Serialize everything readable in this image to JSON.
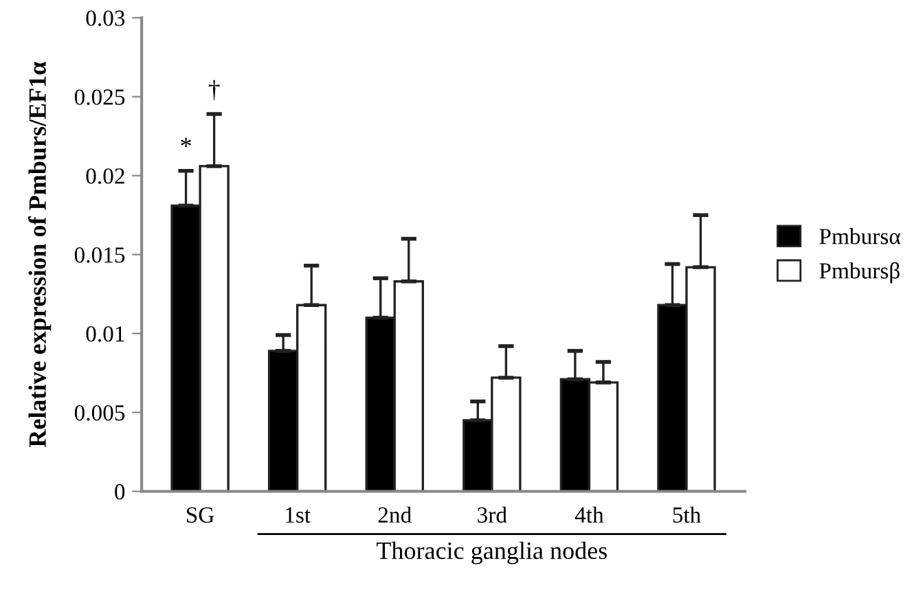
{
  "chart_data": {
    "type": "bar",
    "ylabel": "Relative expression of Pmburs/EF1α",
    "xlabel": "Thoracic ganglia nodes",
    "categories": [
      "SG",
      "1st",
      "2nd",
      "3rd",
      "4th",
      "5th"
    ],
    "series": [
      {
        "name": "Pmbursα",
        "color": "#000000",
        "values": [
          0.0181,
          0.0089,
          0.011,
          0.0045,
          0.0071,
          0.0118
        ],
        "errors": [
          [
            0.0181,
            0.0203
          ],
          [
            0.0089,
            0.0099
          ],
          [
            0.011,
            0.0135
          ],
          [
            0.0045,
            0.0057
          ],
          [
            0.0071,
            0.0089
          ],
          [
            0.0118,
            0.0144
          ]
        ]
      },
      {
        "name": "Pmbursβ",
        "color": "#ffffff",
        "values": [
          0.0206,
          0.0118,
          0.0133,
          0.0072,
          0.0069,
          0.0142
        ],
        "errors": [
          [
            0.0206,
            0.0239
          ],
          [
            0.0118,
            0.0143
          ],
          [
            0.0133,
            0.016
          ],
          [
            0.0072,
            0.0092
          ],
          [
            0.0069,
            0.0082
          ],
          [
            0.0142,
            0.0175
          ]
        ]
      }
    ],
    "annotations": [
      "*",
      "†"
    ],
    "ylim": [
      0,
      0.03
    ],
    "yticks": [
      0,
      0.005,
      0.01,
      0.015,
      0.02,
      0.025,
      0.03
    ],
    "grid": false,
    "legend": "right"
  }
}
